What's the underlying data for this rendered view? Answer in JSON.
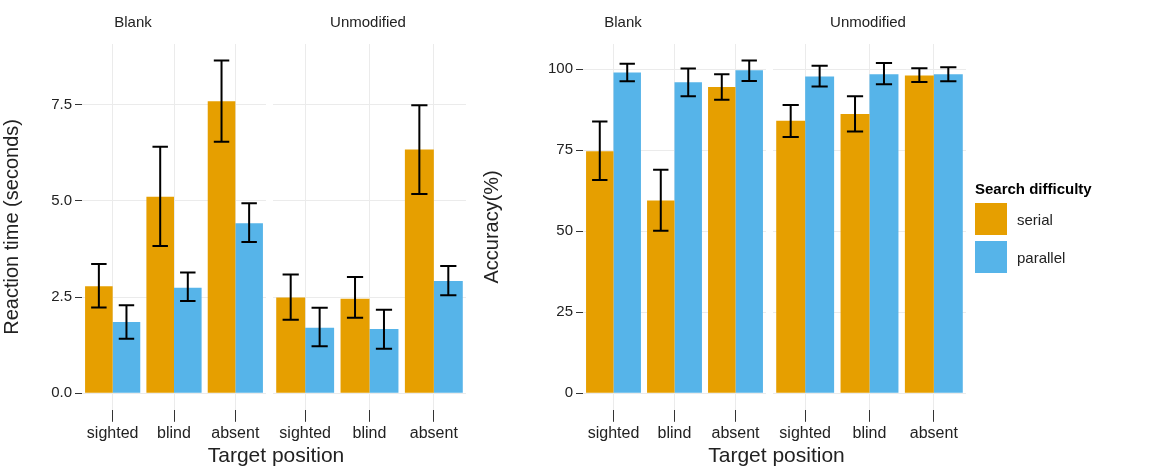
{
  "chart_data": [
    {
      "type": "bar",
      "title": "Blank",
      "ylabel": "Reaction time (seconds)",
      "xlabel": "Target position",
      "categories": [
        "sighted",
        "blind",
        "absent"
      ],
      "ylim": [
        -0.43,
        9.08
      ],
      "yticks": [
        {
          "value": 0,
          "label": "0.0"
        },
        {
          "value": 2.5,
          "label": "2.5"
        },
        {
          "value": 5,
          "label": "5.0"
        },
        {
          "value": 7.5,
          "label": "7.5"
        }
      ],
      "grid": true,
      "legend": false,
      "series": [
        {
          "color": "#e69f00",
          "values": [
            2.78,
            5.11,
            7.59
          ],
          "errors": [
            [
              2.23,
              3.36
            ],
            [
              3.83,
              6.41
            ],
            [
              6.54,
              8.65
            ]
          ]
        },
        {
          "color": "#56b4e9",
          "values": [
            1.85,
            2.74,
            4.42
          ],
          "errors": [
            [
              1.42,
              2.29
            ],
            [
              2.4,
              3.14
            ],
            [
              3.93,
              4.94
            ]
          ]
        }
      ]
    },
    {
      "type": "bar",
      "title": "Unmodified",
      "categories": [
        "sighted",
        "blind",
        "absent"
      ],
      "ylim": [
        -0.43,
        9.08
      ],
      "yticks": [
        0,
        2.5,
        5,
        7.5
      ],
      "grid": true,
      "legend": false,
      "tick_labels": "x",
      "series": [
        {
          "color": "#e69f00",
          "values": [
            2.49,
            2.46,
            6.34
          ],
          "errors": [
            [
              1.91,
              3.09
            ],
            [
              1.96,
              3.02
            ],
            [
              5.18,
              7.49
            ]
          ]
        },
        {
          "color": "#56b4e9",
          "values": [
            1.7,
            1.67,
            2.92
          ],
          "errors": [
            [
              1.22,
              2.22
            ],
            [
              1.16,
              2.17
            ],
            [
              2.55,
              3.31
            ]
          ]
        }
      ]
    },
    {
      "type": "bar",
      "title": "Blank",
      "ylabel": "Accuracy(%)",
      "xlabel": "Target position",
      "categories": [
        "sighted",
        "blind",
        "absent"
      ],
      "ylim": [
        -5.1,
        107.8
      ],
      "yticks": [
        0,
        25,
        50,
        75,
        100
      ],
      "grid": true,
      "legend": false,
      "series": [
        {
          "color": "#e69f00",
          "values": [
            74.7,
            59.5,
            94.5
          ],
          "errors": [
            [
              65.8,
              83.9
            ],
            [
              50.2,
              69.0
            ],
            [
              90.6,
              98.5
            ]
          ]
        },
        {
          "color": "#56b4e9",
          "values": [
            99.0,
            96.0,
            99.7
          ],
          "errors": [
            [
              96.3,
              101.7
            ],
            [
              91.7,
              100.2
            ],
            [
              96.4,
              102.7
            ]
          ]
        }
      ]
    },
    {
      "type": "bar",
      "title": "Unmodified",
      "categories": [
        "sighted",
        "blind",
        "absent"
      ],
      "ylim": [
        -5.1,
        107.8
      ],
      "yticks": [
        0,
        25,
        50,
        75,
        100
      ],
      "grid": true,
      "legend": "right",
      "legend_title": "Search difficulty",
      "tick_labels": "x",
      "series": [
        {
          "name": "serial",
          "color": "#e69f00",
          "values": [
            84.1,
            86.2,
            98.1
          ],
          "errors": [
            [
              79.1,
              89.0
            ],
            [
              80.8,
              91.7
            ],
            [
              96.1,
              100.3
            ]
          ]
        },
        {
          "name": "parallel",
          "color": "#56b4e9",
          "values": [
            97.8,
            98.5,
            98.5
          ],
          "errors": [
            [
              94.7,
              101.1
            ],
            [
              95.4,
              101.9
            ],
            [
              96.3,
              100.6
            ]
          ]
        }
      ]
    }
  ]
}
